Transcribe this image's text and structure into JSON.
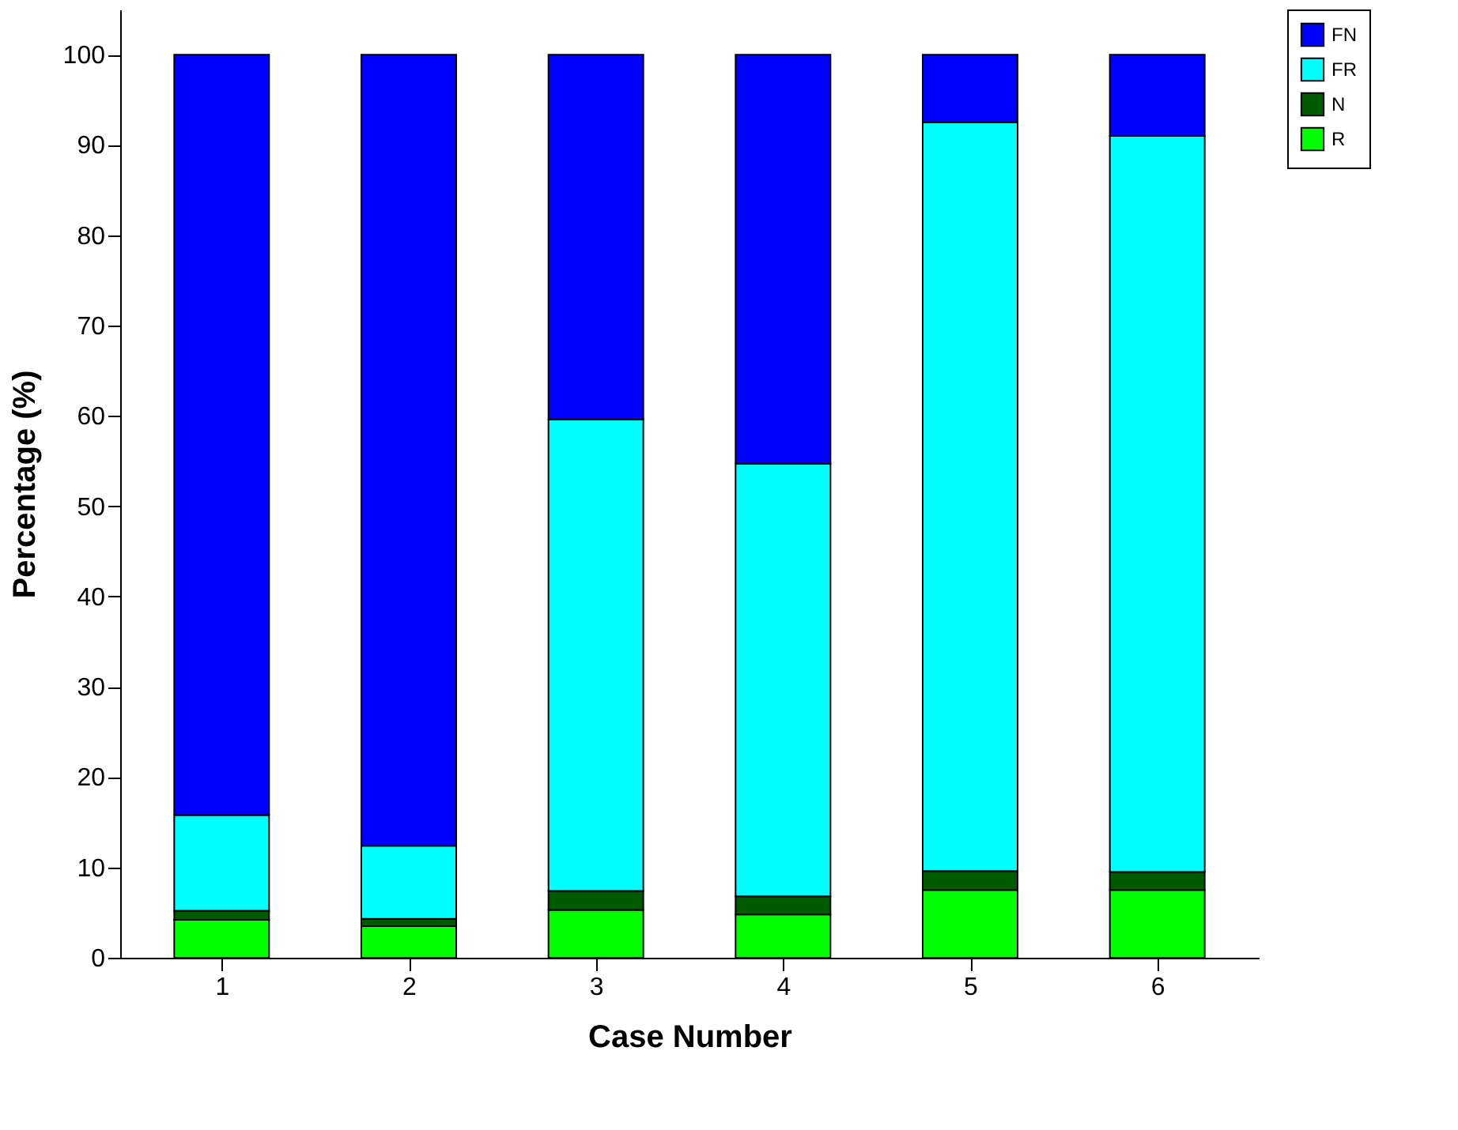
{
  "chart_data": {
    "type": "bar",
    "stacked": true,
    "xlabel": "Case Number",
    "ylabel": "Percentage (%)",
    "categories": [
      "1",
      "2",
      "3",
      "4",
      "5",
      "6"
    ],
    "series": [
      {
        "name": "R",
        "color": "#00ff00",
        "values": [
          4.2,
          3.5,
          5.3,
          4.8,
          7.5,
          7.5
        ]
      },
      {
        "name": "N",
        "color": "#005a00",
        "values": [
          1.0,
          0.8,
          2.1,
          2.0,
          2.1,
          2.0
        ]
      },
      {
        "name": "FR",
        "color": "#00ffff",
        "values": [
          10.6,
          8.1,
          52.2,
          47.9,
          82.9,
          81.5
        ]
      },
      {
        "name": "FN",
        "color": "#0000ff",
        "values": [
          84.2,
          87.6,
          40.4,
          45.3,
          7.5,
          9.0
        ]
      }
    ],
    "ylim": [
      0,
      105
    ],
    "yticks": [
      0,
      10,
      20,
      30,
      40,
      50,
      60,
      70,
      80,
      90,
      100
    ],
    "grid": false,
    "legend": "top right"
  }
}
